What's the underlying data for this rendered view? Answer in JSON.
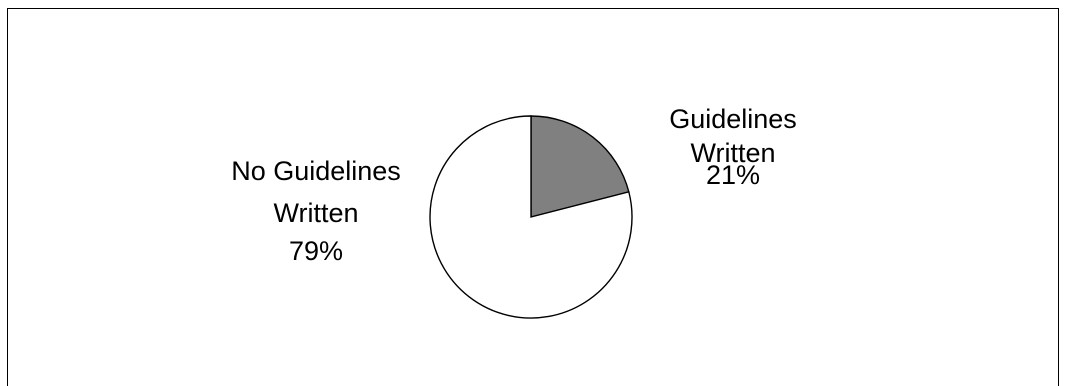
{
  "chart_data": {
    "type": "pie",
    "title": "",
    "slices": [
      {
        "label_lines": [
          "Guidelines",
          "Written",
          "21%"
        ],
        "value": 21,
        "color": "#808080"
      },
      {
        "label_lines": [
          "No Guidelines",
          "Written",
          "79%"
        ],
        "value": 79,
        "color": "#ffffff"
      }
    ],
    "legend": "none"
  }
}
